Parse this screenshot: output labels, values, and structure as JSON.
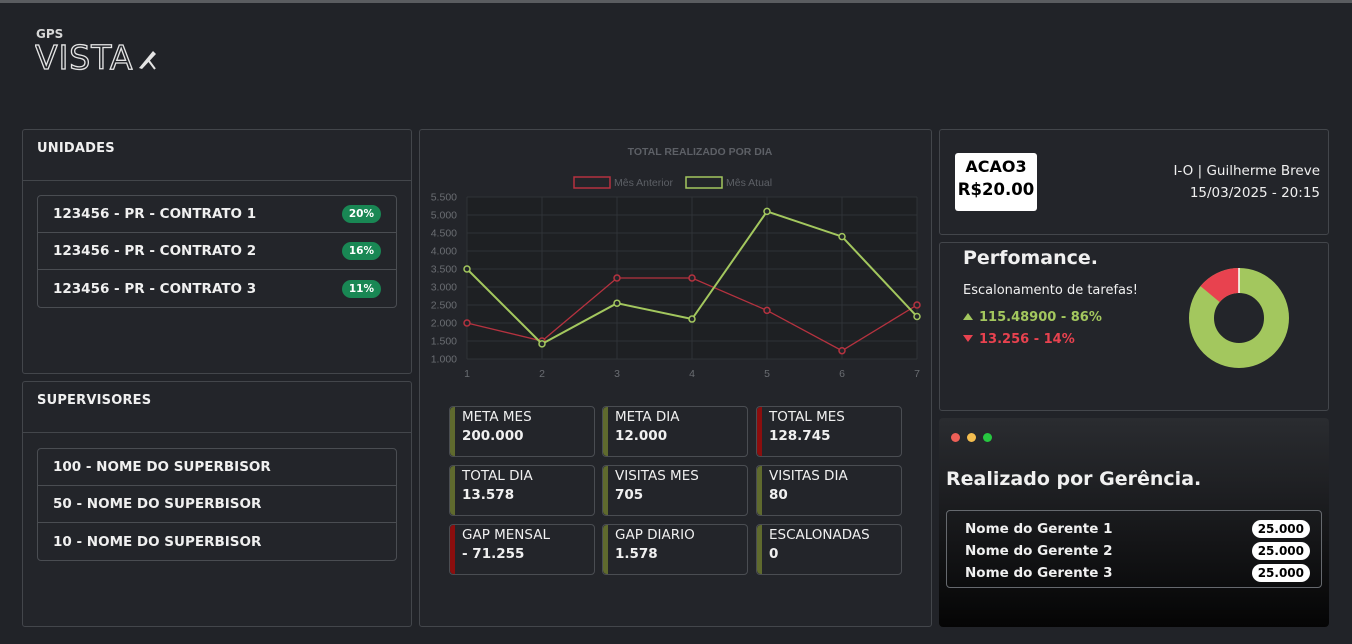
{
  "logo": {
    "top": "GPS",
    "main": "VISTA"
  },
  "unidades": {
    "title": "UNIDADES",
    "items": [
      {
        "label": "123456 - PR - CONTRATO 1",
        "badge": "20%"
      },
      {
        "label": "123456 - PR - CONTRATO 2",
        "badge": "16%"
      },
      {
        "label": "123456 - PR - CONTRATO 3",
        "badge": "11%"
      }
    ]
  },
  "supervisores": {
    "title": "SUPERVISORES",
    "items": [
      {
        "label": "100 - NOME DO SUPERBISOR"
      },
      {
        "label": "50 - NOME DO SUPERBISOR"
      },
      {
        "label": "10 - NOME DO SUPERBISOR"
      }
    ]
  },
  "chart_data": {
    "type": "line",
    "title": "TOTAL REALIZADO POR DIA",
    "x": [
      1,
      2,
      3,
      4,
      5,
      6,
      7
    ],
    "ylim": [
      1000,
      5500
    ],
    "yticks": [
      "1.000",
      "1.500",
      "2.000",
      "2.500",
      "3.000",
      "3.500",
      "4.000",
      "4.500",
      "5.000",
      "5.500"
    ],
    "ytick_values": [
      1000,
      1500,
      2000,
      2500,
      3000,
      3500,
      4000,
      4500,
      5000,
      5500
    ],
    "legend_position": "top",
    "grid": true,
    "series": [
      {
        "name": "Mês Anterior",
        "color": "#b5323f",
        "values": [
          2000,
          1500,
          3250,
          3250,
          2350,
          1230,
          2500
        ]
      },
      {
        "name": "Mês Atual",
        "color": "#a3c75e",
        "values": [
          3500,
          1420,
          2550,
          2110,
          5100,
          4400,
          2180
        ]
      }
    ]
  },
  "kpis": [
    {
      "label": "META MES",
      "value": "200.000",
      "color": "#5f6a2e"
    },
    {
      "label": "META DIA",
      "value": "12.000",
      "color": "#5f6a2e"
    },
    {
      "label": "TOTAL MES",
      "value": "128.745",
      "color": "#8b0e0e"
    },
    {
      "label": "TOTAL DIA",
      "value": "13.578",
      "color": "#5f6a2e"
    },
    {
      "label": "VISITAS MES",
      "value": "705",
      "color": "#5f6a2e"
    },
    {
      "label": "VISITAS DIA",
      "value": "80",
      "color": "#5f6a2e"
    },
    {
      "label": "GAP MENSAL",
      "value": "- 71.255",
      "color": "#8b0e0e"
    },
    {
      "label": "GAP DIARIO",
      "value": "1.578",
      "color": "#5f6a2e"
    },
    {
      "label": "ESCALONADAS",
      "value": "0",
      "color": "#5f6a2e"
    }
  ],
  "stock": {
    "symbol": "ACAO3",
    "price": "R$20.00"
  },
  "user": {
    "name": "I-O | Guilherme Breve",
    "datetime": "15/03/2025 - 20:15"
  },
  "performance": {
    "title": "Perfomance.",
    "subtitle": "Escalonamento de tarefas!",
    "up_text": "115.48900 - 86%",
    "down_text": "13.256 - 14%",
    "up_percent": 86,
    "down_percent": 14,
    "up_color": "#a3c75e",
    "down_color": "#e8424f"
  },
  "gerencia": {
    "title": "Realizado por Gerência.",
    "items": [
      {
        "name": "Nome do Gerente 1",
        "value": "25.000"
      },
      {
        "name": "Nome do Gerente 2",
        "value": "25.000"
      },
      {
        "name": "Nome do Gerente 3",
        "value": "25.000"
      }
    ]
  }
}
